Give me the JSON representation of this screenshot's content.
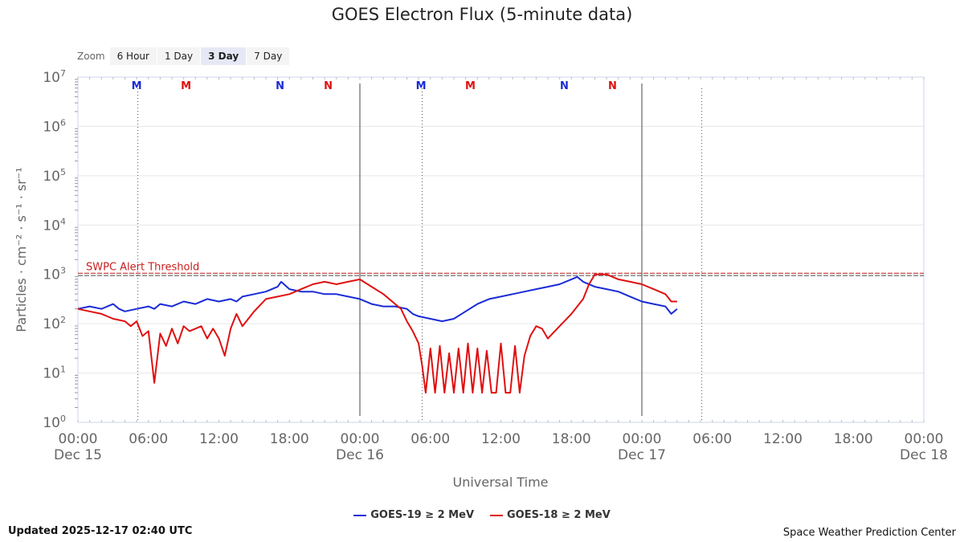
{
  "title": "GOES Electron Flux (5-minute data)",
  "zoom": {
    "label": "Zoom",
    "options": [
      "6 Hour",
      "1 Day",
      "3 Day",
      "7 Day"
    ],
    "active": "3 Day"
  },
  "footer": {
    "updated": "Updated 2025-12-17 02:40 UTC",
    "credit": "Space Weather Prediction Center"
  },
  "colors": {
    "goes19": "#1a2bd6",
    "goes18": "#e01010",
    "threshold": "#c81e1e",
    "grid": "#e6e6e6"
  },
  "chart_data": {
    "type": "line",
    "title": "GOES Electron Flux (5-minute data)",
    "xlabel": "Universal Time",
    "ylabel": "Particles · cm⁻² · s⁻¹ · sr⁻¹",
    "y_scale": "log",
    "ylim_exponent": [
      0,
      7
    ],
    "y_ticks": [
      {
        "base": "10",
        "exp": "0"
      },
      {
        "base": "10",
        "exp": "1"
      },
      {
        "base": "10",
        "exp": "2"
      },
      {
        "base": "10",
        "exp": "3"
      },
      {
        "base": "10",
        "exp": "4"
      },
      {
        "base": "10",
        "exp": "5"
      },
      {
        "base": "10",
        "exp": "6"
      },
      {
        "base": "10",
        "exp": "7"
      }
    ],
    "xlim_hours": [
      0,
      72
    ],
    "x_ticks": [
      {
        "time": "00:00",
        "date": "Dec 15"
      },
      {
        "time": "06:00",
        "date": ""
      },
      {
        "time": "12:00",
        "date": ""
      },
      {
        "time": "18:00",
        "date": ""
      },
      {
        "time": "00:00",
        "date": "Dec 16"
      },
      {
        "time": "06:00",
        "date": ""
      },
      {
        "time": "12:00",
        "date": ""
      },
      {
        "time": "18:00",
        "date": ""
      },
      {
        "time": "00:00",
        "date": "Dec 17"
      },
      {
        "time": "06:00",
        "date": ""
      },
      {
        "time": "12:00",
        "date": ""
      },
      {
        "time": "18:00",
        "date": ""
      },
      {
        "time": "00:00",
        "date": "Dec 18"
      }
    ],
    "threshold": {
      "label": "SWPC Alert Threshold",
      "exponent": 3.0
    },
    "day_lines_hours": [
      24,
      48
    ],
    "midnight_dotted_hours": [
      5.1,
      29.3,
      53.1
    ],
    "markers": [
      {
        "hour": 5.0,
        "label": "M",
        "color": "#1a2bd6"
      },
      {
        "hour": 9.2,
        "label": "M",
        "color": "#e01010"
      },
      {
        "hour": 17.2,
        "label": "N",
        "color": "#1a2bd6"
      },
      {
        "hour": 21.3,
        "label": "N",
        "color": "#e01010"
      },
      {
        "hour": 29.2,
        "label": "M",
        "color": "#1a2bd6"
      },
      {
        "hour": 33.4,
        "label": "M",
        "color": "#e01010"
      },
      {
        "hour": 41.4,
        "label": "N",
        "color": "#1a2bd6"
      },
      {
        "hour": 45.5,
        "label": "N",
        "color": "#e01010"
      }
    ],
    "series": [
      {
        "name": "GOES-19 ≥ 2 MeV",
        "color": "#1a2bd6",
        "x_hours": [
          0,
          1,
          2,
          3,
          3.5,
          4,
          5,
          6,
          6.5,
          7,
          8,
          9,
          10,
          11,
          12,
          13,
          13.5,
          14,
          15,
          16,
          17,
          17.3,
          18,
          19,
          20,
          21,
          22,
          23,
          24,
          25,
          26,
          27,
          28,
          28.5,
          29,
          30,
          31,
          32,
          33,
          34,
          35,
          36,
          37,
          38,
          39,
          40,
          41,
          42,
          42.5,
          43,
          44,
          45,
          46,
          47,
          48,
          49,
          50,
          50.5,
          51
        ],
        "y_exp": [
          2.3,
          2.35,
          2.3,
          2.4,
          2.3,
          2.25,
          2.3,
          2.35,
          2.3,
          2.4,
          2.35,
          2.45,
          2.4,
          2.5,
          2.45,
          2.5,
          2.45,
          2.55,
          2.6,
          2.65,
          2.75,
          2.85,
          2.7,
          2.65,
          2.65,
          2.6,
          2.6,
          2.55,
          2.5,
          2.4,
          2.35,
          2.35,
          2.3,
          2.2,
          2.15,
          2.1,
          2.05,
          2.1,
          2.25,
          2.4,
          2.5,
          2.55,
          2.6,
          2.65,
          2.7,
          2.75,
          2.8,
          2.9,
          2.95,
          2.85,
          2.75,
          2.7,
          2.65,
          2.55,
          2.45,
          2.4,
          2.35,
          2.2,
          2.3
        ]
      },
      {
        "name": "GOES-18 ≥ 2 MeV",
        "color": "#e01010",
        "x_hours": [
          0,
          1,
          2,
          3,
          4,
          4.5,
          5,
          5.5,
          6,
          6.5,
          7,
          7.5,
          8,
          8.5,
          9,
          9.5,
          10,
          10.5,
          11,
          11.5,
          12,
          12.5,
          13,
          13.5,
          14,
          15,
          16,
          17,
          18,
          19,
          20,
          21,
          22,
          23,
          24,
          25,
          26,
          27,
          27.5,
          28,
          28.5,
          29,
          29.3,
          29.6,
          30,
          30.4,
          30.8,
          31.2,
          31.6,
          32,
          32.4,
          32.8,
          33.2,
          33.6,
          34,
          34.4,
          34.8,
          35.2,
          35.6,
          36,
          36.4,
          36.8,
          37.2,
          37.6,
          38,
          38.5,
          39,
          39.5,
          40,
          41,
          42,
          43,
          43.5,
          44,
          45,
          46,
          47,
          48,
          49,
          50,
          50.5,
          51
        ],
        "y_exp": [
          2.3,
          2.25,
          2.2,
          2.1,
          2.05,
          1.95,
          2.05,
          1.75,
          1.85,
          0.8,
          1.8,
          1.55,
          1.9,
          1.6,
          1.95,
          1.85,
          1.9,
          1.95,
          1.7,
          1.9,
          1.7,
          1.35,
          1.9,
          2.2,
          1.95,
          2.25,
          2.5,
          2.55,
          2.6,
          2.7,
          2.8,
          2.85,
          2.8,
          2.85,
          2.9,
          2.75,
          2.6,
          2.4,
          2.3,
          2.05,
          1.85,
          1.6,
          1.15,
          0.6,
          1.5,
          0.6,
          1.55,
          0.6,
          1.4,
          0.6,
          1.5,
          0.6,
          1.6,
          0.6,
          1.5,
          0.6,
          1.45,
          0.6,
          0.6,
          1.6,
          0.6,
          0.6,
          1.55,
          0.6,
          1.35,
          1.75,
          1.95,
          1.9,
          1.7,
          1.95,
          2.2,
          2.5,
          2.8,
          3.0,
          3.0,
          2.9,
          2.85,
          2.8,
          2.7,
          2.6,
          2.45,
          2.45
        ]
      }
    ]
  }
}
